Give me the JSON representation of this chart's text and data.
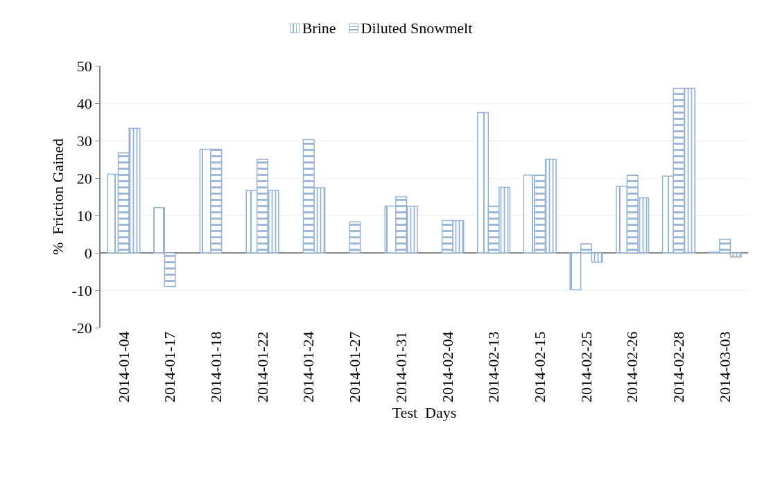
{
  "chart_data": {
    "type": "bar",
    "xlabel": "Test  Days",
    "ylabel": "%  Friction Gained",
    "categories": [
      "2014-01-04",
      "2014-01-17",
      "2014-01-18",
      "2014-01-22",
      "2014-01-24",
      "2014-01-27",
      "2014-01-31",
      "2014-02-04",
      "2014-02-13",
      "2014-02-15",
      "2014-02-25",
      "2014-02-26",
      "2014-02-28",
      "2014-03-03"
    ],
    "series": [
      {
        "name": "Brine",
        "color": "#95b3d7",
        "values": [
          21,
          12.1,
          27.7,
          16.7,
          null,
          null,
          12.5,
          null,
          37.5,
          20.8,
          -9.8,
          17.8,
          20.5,
          0.2
        ]
      },
      {
        "name": "Diluted Snowmelt",
        "color": "#95b3d7",
        "values": [
          26.7,
          -9,
          27.7,
          25,
          30.3,
          8.3,
          15,
          8.6,
          12.5,
          20.8,
          2.4,
          20.8,
          44,
          3.6
        ]
      },
      {
        "color": "#95b3d7",
        "values": [
          33.3,
          null,
          null,
          16.7,
          17.4,
          null,
          12.5,
          8.6,
          17.5,
          25,
          -2.5,
          14.7,
          44,
          -1.1
        ]
      }
    ],
    "ylim": [
      -20,
      50
    ],
    "yticks": [
      -20,
      -10,
      0,
      10,
      20,
      30,
      40,
      50
    ],
    "grid": "y",
    "legend": "top"
  }
}
